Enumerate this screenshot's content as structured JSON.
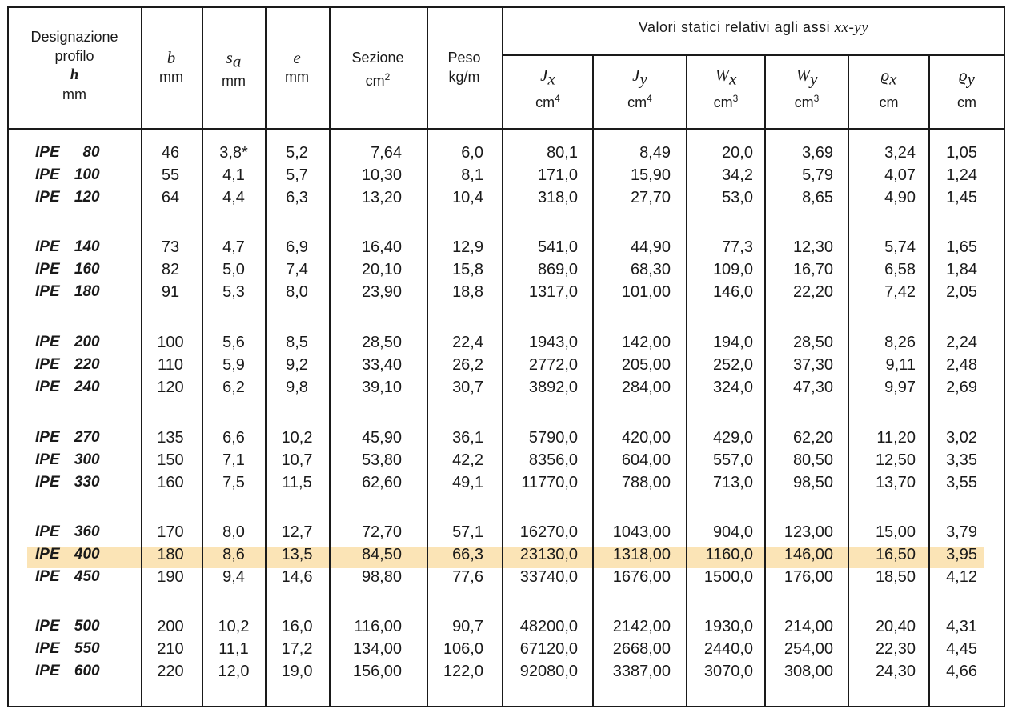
{
  "header": {
    "designazione": [
      "Designazione",
      "profilo",
      "h",
      "mm"
    ],
    "b": {
      "symbol": "b",
      "unit": "mm"
    },
    "sa": {
      "symbol": "s",
      "sub": "a",
      "unit": "mm"
    },
    "e": {
      "symbol": "e",
      "unit": "mm"
    },
    "sezione": {
      "label": "Sezione",
      "unit": "cm",
      "sup": "2"
    },
    "peso": {
      "label": "Peso",
      "unit": "kg/m"
    },
    "group_title": "Valori statici relativi agli assi",
    "group_axes": "xx-yy",
    "sub": [
      {
        "symbol": "J",
        "sub": "x",
        "unit": "cm",
        "sup": "4"
      },
      {
        "symbol": "J",
        "sub": "y",
        "unit": "cm",
        "sup": "4"
      },
      {
        "symbol": "W",
        "sub": "x",
        "unit": "cm",
        "sup": "3"
      },
      {
        "symbol": "W",
        "sub": "y",
        "unit": "cm",
        "sup": "3"
      },
      {
        "symbol": "ϱ",
        "sub": "x",
        "unit": "cm",
        "sup": ""
      },
      {
        "symbol": "ϱ",
        "sub": "y",
        "unit": "cm",
        "sup": ""
      }
    ]
  },
  "highlight_row": "IPE 400",
  "groups": [
    [
      {
        "series": "IPE",
        "h": "80",
        "b": "46",
        "sa": "3,8*",
        "e": "5,2",
        "sez": "7,64",
        "peso": "6,0",
        "jx": "80,1",
        "jy": "8,49",
        "wx": "20,0",
        "wy": "3,69",
        "rx": "3,24",
        "ry": "1,05"
      },
      {
        "series": "IPE",
        "h": "100",
        "b": "55",
        "sa": "4,1",
        "e": "5,7",
        "sez": "10,30",
        "peso": "8,1",
        "jx": "171,0",
        "jy": "15,90",
        "wx": "34,2",
        "wy": "5,79",
        "rx": "4,07",
        "ry": "1,24"
      },
      {
        "series": "IPE",
        "h": "120",
        "b": "64",
        "sa": "4,4",
        "e": "6,3",
        "sez": "13,20",
        "peso": "10,4",
        "jx": "318,0",
        "jy": "27,70",
        "wx": "53,0",
        "wy": "8,65",
        "rx": "4,90",
        "ry": "1,45"
      }
    ],
    [
      {
        "series": "IPE",
        "h": "140",
        "b": "73",
        "sa": "4,7",
        "e": "6,9",
        "sez": "16,40",
        "peso": "12,9",
        "jx": "541,0",
        "jy": "44,90",
        "wx": "77,3",
        "wy": "12,30",
        "rx": "5,74",
        "ry": "1,65"
      },
      {
        "series": "IPE",
        "h": "160",
        "b": "82",
        "sa": "5,0",
        "e": "7,4",
        "sez": "20,10",
        "peso": "15,8",
        "jx": "869,0",
        "jy": "68,30",
        "wx": "109,0",
        "wy": "16,70",
        "rx": "6,58",
        "ry": "1,84"
      },
      {
        "series": "IPE",
        "h": "180",
        "b": "91",
        "sa": "5,3",
        "e": "8,0",
        "sez": "23,90",
        "peso": "18,8",
        "jx": "1317,0",
        "jy": "101,00",
        "wx": "146,0",
        "wy": "22,20",
        "rx": "7,42",
        "ry": "2,05"
      }
    ],
    [
      {
        "series": "IPE",
        "h": "200",
        "b": "100",
        "sa": "5,6",
        "e": "8,5",
        "sez": "28,50",
        "peso": "22,4",
        "jx": "1943,0",
        "jy": "142,00",
        "wx": "194,0",
        "wy": "28,50",
        "rx": "8,26",
        "ry": "2,24"
      },
      {
        "series": "IPE",
        "h": "220",
        "b": "110",
        "sa": "5,9",
        "e": "9,2",
        "sez": "33,40",
        "peso": "26,2",
        "jx": "2772,0",
        "jy": "205,00",
        "wx": "252,0",
        "wy": "37,30",
        "rx": "9,11",
        "ry": "2,48"
      },
      {
        "series": "IPE",
        "h": "240",
        "b": "120",
        "sa": "6,2",
        "e": "9,8",
        "sez": "39,10",
        "peso": "30,7",
        "jx": "3892,0",
        "jy": "284,00",
        "wx": "324,0",
        "wy": "47,30",
        "rx": "9,97",
        "ry": "2,69"
      }
    ],
    [
      {
        "series": "IPE",
        "h": "270",
        "b": "135",
        "sa": "6,6",
        "e": "10,2",
        "sez": "45,90",
        "peso": "36,1",
        "jx": "5790,0",
        "jy": "420,00",
        "wx": "429,0",
        "wy": "62,20",
        "rx": "11,20",
        "ry": "3,02"
      },
      {
        "series": "IPE",
        "h": "300",
        "b": "150",
        "sa": "7,1",
        "e": "10,7",
        "sez": "53,80",
        "peso": "42,2",
        "jx": "8356,0",
        "jy": "604,00",
        "wx": "557,0",
        "wy": "80,50",
        "rx": "12,50",
        "ry": "3,35"
      },
      {
        "series": "IPE",
        "h": "330",
        "b": "160",
        "sa": "7,5",
        "e": "11,5",
        "sez": "62,60",
        "peso": "49,1",
        "jx": "11770,0",
        "jy": "788,00",
        "wx": "713,0",
        "wy": "98,50",
        "rx": "13,70",
        "ry": "3,55"
      }
    ],
    [
      {
        "series": "IPE",
        "h": "360",
        "b": "170",
        "sa": "8,0",
        "e": "12,7",
        "sez": "72,70",
        "peso": "57,1",
        "jx": "16270,0",
        "jy": "1043,00",
        "wx": "904,0",
        "wy": "123,00",
        "rx": "15,00",
        "ry": "3,79"
      },
      {
        "series": "IPE",
        "h": "400",
        "b": "180",
        "sa": "8,6",
        "e": "13,5",
        "sez": "84,50",
        "peso": "66,3",
        "jx": "23130,0",
        "jy": "1318,00",
        "wx": "1160,0",
        "wy": "146,00",
        "rx": "16,50",
        "ry": "3,95"
      },
      {
        "series": "IPE",
        "h": "450",
        "b": "190",
        "sa": "9,4",
        "e": "14,6",
        "sez": "98,80",
        "peso": "77,6",
        "jx": "33740,0",
        "jy": "1676,00",
        "wx": "1500,0",
        "wy": "176,00",
        "rx": "18,50",
        "ry": "4,12"
      }
    ],
    [
      {
        "series": "IPE",
        "h": "500",
        "b": "200",
        "sa": "10,2",
        "e": "16,0",
        "sez": "116,00",
        "peso": "90,7",
        "jx": "48200,0",
        "jy": "2142,00",
        "wx": "1930,0",
        "wy": "214,00",
        "rx": "20,40",
        "ry": "4,31"
      },
      {
        "series": "IPE",
        "h": "550",
        "b": "210",
        "sa": "11,1",
        "e": "17,2",
        "sez": "134,00",
        "peso": "106,0",
        "jx": "67120,0",
        "jy": "2668,00",
        "wx": "2440,0",
        "wy": "254,00",
        "rx": "22,30",
        "ry": "4,45"
      },
      {
        "series": "IPE",
        "h": "600",
        "b": "220",
        "sa": "12,0",
        "e": "19,0",
        "sez": "156,00",
        "peso": "122,0",
        "jx": "92080,0",
        "jy": "3387,00",
        "wx": "3070,0",
        "wy": "308,00",
        "rx": "24,30",
        "ry": "4,66"
      }
    ]
  ]
}
